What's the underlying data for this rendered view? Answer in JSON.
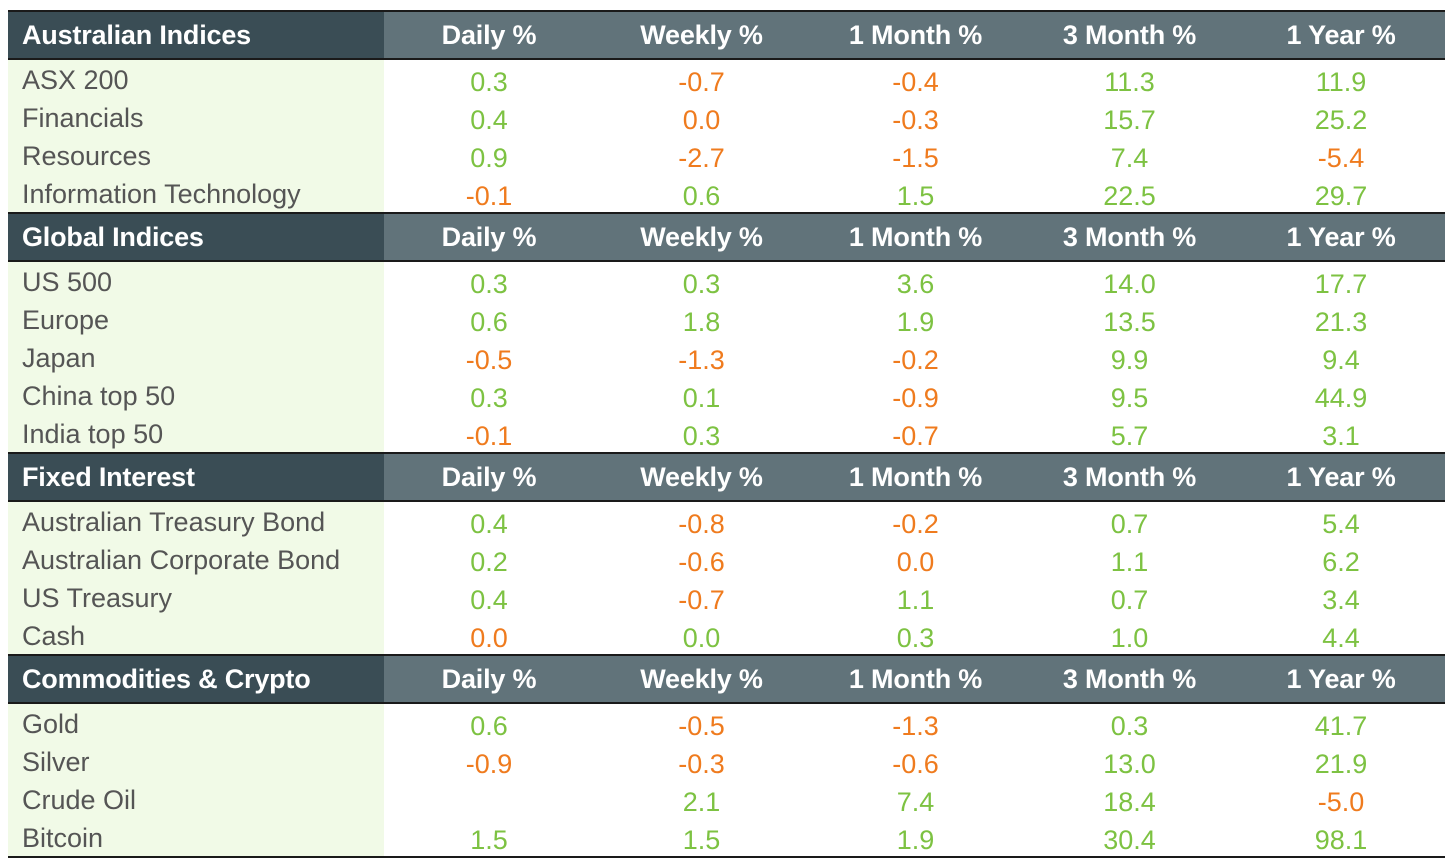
{
  "colors": {
    "positive": "#7dc242",
    "negative": "#ef7b1e",
    "header_dark": "#3a4d55",
    "header": "#61737a",
    "name_bg": "#f1fae7"
  },
  "columns": [
    "Daily %",
    "Weekly %",
    "1 Month %",
    "3 Month %",
    "1 Year %"
  ],
  "sections": [
    {
      "title": "Australian Indices",
      "rows": [
        {
          "name": "ASX 200",
          "values": [
            "0.3",
            "-0.7",
            "-0.4",
            "11.3",
            "11.9"
          ]
        },
        {
          "name": "Financials",
          "values": [
            "0.4",
            "0.0",
            "-0.3",
            "15.7",
            "25.2"
          ]
        },
        {
          "name": "Resources",
          "values": [
            "0.9",
            "-2.7",
            "-1.5",
            "7.4",
            "-5.4"
          ]
        },
        {
          "name": "Information Technology",
          "values": [
            "-0.1",
            "0.6",
            "1.5",
            "22.5",
            "29.7"
          ]
        }
      ]
    },
    {
      "title": "Global Indices",
      "rows": [
        {
          "name": "US 500",
          "values": [
            "0.3",
            "0.3",
            "3.6",
            "14.0",
            "17.7"
          ]
        },
        {
          "name": "Europe",
          "values": [
            "0.6",
            "1.8",
            "1.9",
            "13.5",
            "21.3"
          ]
        },
        {
          "name": "Japan",
          "values": [
            "-0.5",
            "-1.3",
            "-0.2",
            "9.9",
            "9.4"
          ]
        },
        {
          "name": "China top 50",
          "values": [
            "0.3",
            "0.1",
            "-0.9",
            "9.5",
            "44.9"
          ]
        },
        {
          "name": "India top 50",
          "values": [
            "-0.1",
            "0.3",
            "-0.7",
            "5.7",
            "3.1"
          ]
        }
      ]
    },
    {
      "title": "Fixed Interest",
      "rows": [
        {
          "name": "Australian Treasury Bond",
          "values": [
            "0.4",
            "-0.8",
            "-0.2",
            "0.7",
            "5.4"
          ]
        },
        {
          "name": "Australian Corporate Bond",
          "values": [
            "0.2",
            "-0.6",
            "0.0",
            "1.1",
            "6.2"
          ]
        },
        {
          "name": "US Treasury",
          "values": [
            "0.4",
            "-0.7",
            "1.1",
            "0.7",
            "3.4"
          ]
        },
        {
          "name": "Cash",
          "values": [
            "0.0",
            "0.0",
            "0.3",
            "1.0",
            "4.4"
          ]
        }
      ]
    },
    {
      "title": "Commodities & Crypto",
      "rows": [
        {
          "name": "Gold",
          "values": [
            "0.6",
            "-0.5",
            "-1.3",
            "0.3",
            "41.7"
          ]
        },
        {
          "name": "Silver",
          "values": [
            "-0.9",
            "-0.3",
            "-0.6",
            "13.0",
            "21.9"
          ]
        },
        {
          "name": "Crude Oil",
          "values": [
            "",
            "2.1",
            "7.4",
            "18.4",
            "-5.0"
          ]
        },
        {
          "name": "Bitcoin",
          "values": [
            "1.5",
            "1.5",
            "1.9",
            "30.4",
            "98.1"
          ]
        }
      ]
    }
  ],
  "color_map": {
    "0": [
      [
        "pos",
        "neg",
        "neg",
        "pos",
        "pos"
      ],
      [
        "pos",
        "neg",
        "neg",
        "pos",
        "pos"
      ],
      [
        "pos",
        "neg",
        "neg",
        "pos",
        "neg"
      ],
      [
        "neg",
        "pos",
        "pos",
        "pos",
        "pos"
      ]
    ],
    "1": [
      [
        "pos",
        "pos",
        "pos",
        "pos",
        "pos"
      ],
      [
        "pos",
        "pos",
        "pos",
        "pos",
        "pos"
      ],
      [
        "neg",
        "neg",
        "neg",
        "pos",
        "pos"
      ],
      [
        "pos",
        "pos",
        "neg",
        "pos",
        "pos"
      ],
      [
        "neg",
        "pos",
        "neg",
        "pos",
        "pos"
      ]
    ],
    "2": [
      [
        "pos",
        "neg",
        "neg",
        "pos",
        "pos"
      ],
      [
        "pos",
        "neg",
        "neg",
        "pos",
        "pos"
      ],
      [
        "pos",
        "neg",
        "pos",
        "pos",
        "pos"
      ],
      [
        "neg",
        "pos",
        "pos",
        "pos",
        "pos"
      ]
    ],
    "3": [
      [
        "pos",
        "neg",
        "neg",
        "pos",
        "pos"
      ],
      [
        "neg",
        "neg",
        "neg",
        "pos",
        "pos"
      ],
      [
        "pos",
        "pos",
        "pos",
        "pos",
        "neg"
      ],
      [
        "pos",
        "pos",
        "pos",
        "pos",
        "pos"
      ]
    ]
  }
}
